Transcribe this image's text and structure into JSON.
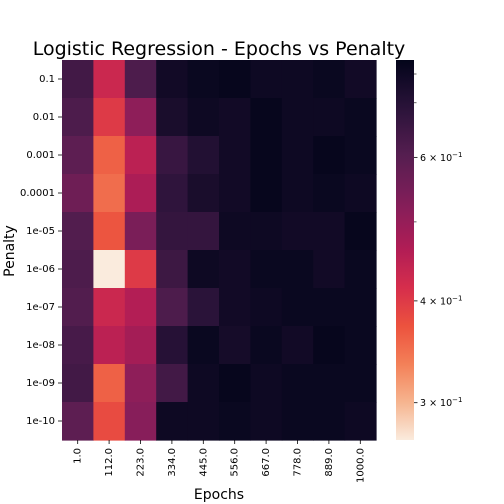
{
  "chart_data": {
    "type": "heatmap",
    "title": "Logistic Regression - Epochs vs Penalty",
    "xlabel": "Epochs",
    "ylabel": "Penalty",
    "x_categories": [
      "1.0",
      "112.0",
      "223.0",
      "334.0",
      "445.0",
      "556.0",
      "667.0",
      "778.0",
      "889.0",
      "1000.0"
    ],
    "y_categories": [
      "0.1",
      "0.01",
      "0.001",
      "0.0001",
      "1e-05",
      "1e-06",
      "1e-07",
      "1e-08",
      "1e-09",
      "1e-10"
    ],
    "values": [
      [
        0.64,
        0.43,
        0.62,
        0.75,
        0.77,
        0.78,
        0.76,
        0.76,
        0.77,
        0.75
      ],
      [
        0.62,
        0.4,
        0.51,
        0.73,
        0.76,
        0.75,
        0.78,
        0.76,
        0.76,
        0.77
      ],
      [
        0.59,
        0.36,
        0.45,
        0.66,
        0.71,
        0.75,
        0.78,
        0.76,
        0.78,
        0.77
      ],
      [
        0.56,
        0.35,
        0.47,
        0.68,
        0.73,
        0.75,
        0.78,
        0.76,
        0.77,
        0.76
      ],
      [
        0.61,
        0.37,
        0.54,
        0.67,
        0.67,
        0.76,
        0.76,
        0.75,
        0.75,
        0.78
      ],
      [
        0.62,
        0.27,
        0.4,
        0.65,
        0.76,
        0.75,
        0.77,
        0.77,
        0.75,
        0.77
      ],
      [
        0.61,
        0.43,
        0.46,
        0.62,
        0.69,
        0.75,
        0.76,
        0.77,
        0.77,
        0.77
      ],
      [
        0.63,
        0.45,
        0.48,
        0.7,
        0.77,
        0.74,
        0.77,
        0.75,
        0.78,
        0.77
      ],
      [
        0.64,
        0.36,
        0.51,
        0.64,
        0.76,
        0.78,
        0.76,
        0.77,
        0.77,
        0.77
      ],
      [
        0.59,
        0.38,
        0.52,
        0.76,
        0.76,
        0.77,
        0.76,
        0.77,
        0.77,
        0.76
      ]
    ],
    "colorbar": {
      "scale": "log",
      "vmin": 0.27,
      "vmax": 0.79,
      "ticks": [
        {
          "value": 0.3,
          "label_base": "3",
          "label_exp": "−1"
        },
        {
          "value": 0.4,
          "label_base": "4",
          "label_exp": "−1"
        },
        {
          "value": 0.6,
          "label_base": "6",
          "label_exp": "−1"
        }
      ],
      "colormap": "rocket"
    }
  }
}
